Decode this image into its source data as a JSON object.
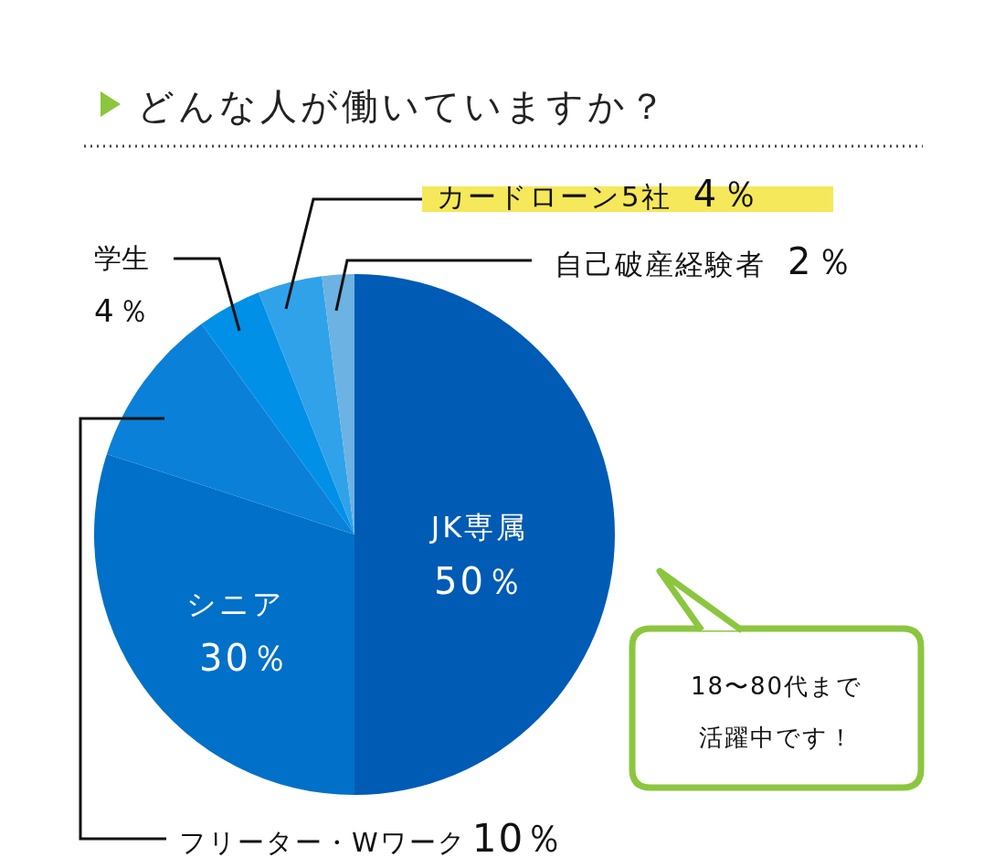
{
  "chart_data": {
    "type": "pie",
    "title": "どんな人が働いていますか？",
    "categories": [
      "JK専属",
      "シニア",
      "フリーター・Wワーク",
      "学生",
      "カードローン5社",
      "自己破産経験者"
    ],
    "values": [
      50,
      30,
      10,
      4,
      4,
      2
    ],
    "value_labels": [
      "50％",
      "30％",
      "10％",
      "4％",
      "4％",
      "2％"
    ],
    "colors": [
      "#005bb5",
      "#0070c8",
      "#0a80d8",
      "#0090e8",
      "#30a2ea",
      "#6cb2e2"
    ],
    "annotations": [
      "18〜80代まで",
      "活躍中です！"
    ]
  }
}
